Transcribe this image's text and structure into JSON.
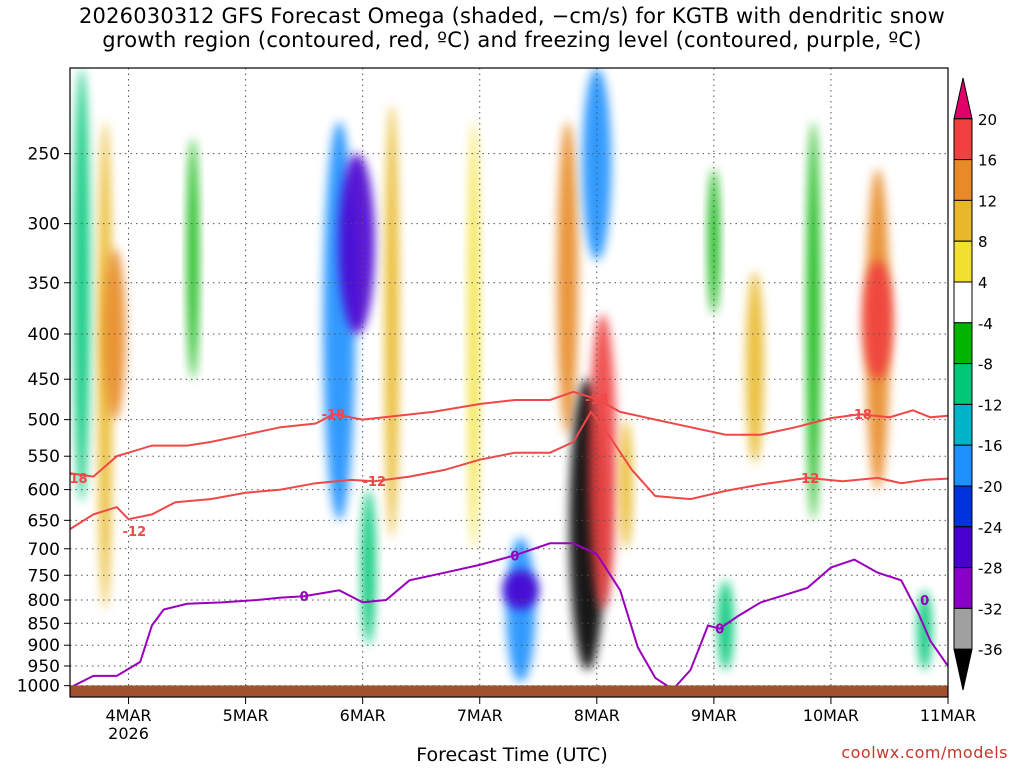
{
  "chart_data": {
    "type": "heatmap",
    "title_line1": "2026030312 GFS Forecast Omega (shaded, −cm/s) for KGTB with dendritic snow",
    "title_line2": "growth region (contoured, red, ºC) and freezing level (contoured, purple, ºC)",
    "xlabel": "Forecast Time (UTC)",
    "ylabel": "",
    "credit": "coolwx.com/models",
    "x_ticks": [
      {
        "day": 0.5,
        "label": "4MAR",
        "sublabel": "2026"
      },
      {
        "day": 1.5,
        "label": "5MAR",
        "sublabel": ""
      },
      {
        "day": 2.5,
        "label": "6MAR",
        "sublabel": ""
      },
      {
        "day": 3.5,
        "label": "7MAR",
        "sublabel": ""
      },
      {
        "day": 4.5,
        "label": "8MAR",
        "sublabel": ""
      },
      {
        "day": 5.5,
        "label": "9MAR",
        "sublabel": ""
      },
      {
        "day": 6.5,
        "label": "10MAR",
        "sublabel": ""
      },
      {
        "day": 7.5,
        "label": "11MAR",
        "sublabel": ""
      }
    ],
    "xlim": [
      0,
      7.5
    ],
    "y_ticks": [
      250,
      300,
      350,
      400,
      450,
      500,
      550,
      600,
      650,
      700,
      750,
      800,
      850,
      900,
      950,
      1000
    ],
    "ylim_hpa": [
      200,
      1030
    ],
    "colorbar": {
      "levels": [
        -36,
        -32,
        -28,
        -24,
        -20,
        -16,
        -12,
        -8,
        -4,
        4,
        8,
        12,
        16,
        20
      ],
      "colors": [
        "#000000",
        "#a0a0a0",
        "#8a00c8",
        "#4800d0",
        "#0033e0",
        "#1e90ff",
        "#00b4c8",
        "#00c878",
        "#00b400",
        "#ffffff",
        "#f2e030",
        "#e8b828",
        "#e88a28",
        "#f04040",
        "#e0006a"
      ]
    },
    "omega_features": [
      {
        "name": "4mar-upward",
        "day": 0.3,
        "p_top": 230,
        "p_bot": 820,
        "value": 9
      },
      {
        "name": "4mar-core",
        "day": 0.38,
        "p_top": 320,
        "p_bot": 500,
        "value": 14
      },
      {
        "name": "4mar-west-sink",
        "day": 0.1,
        "p_top": 200,
        "p_bot": 620,
        "value": -10
      },
      {
        "name": "5mar-sink",
        "day": 1.05,
        "p_top": 240,
        "p_bot": 450,
        "value": -7
      },
      {
        "name": "6mar-sink",
        "day": 2.3,
        "p_top": 230,
        "p_bot": 650,
        "value": -20
      },
      {
        "name": "6mar-core",
        "day": 2.45,
        "p_top": 250,
        "p_bot": 400,
        "value": -26
      },
      {
        "name": "6mar-lower-sink",
        "day": 2.55,
        "p_top": 600,
        "p_bot": 900,
        "value": -9
      },
      {
        "name": "6mar-upward",
        "day": 2.75,
        "p_top": 220,
        "p_bot": 680,
        "value": 9
      },
      {
        "name": "7mar-upward",
        "day": 3.45,
        "p_top": 230,
        "p_bot": 700,
        "value": 7
      },
      {
        "name": "7mar-lower-sink",
        "day": 3.85,
        "p_top": 680,
        "p_bot": 990,
        "value": -18
      },
      {
        "name": "7mar-low-core",
        "day": 3.85,
        "p_top": 740,
        "p_bot": 820,
        "value": -28
      },
      {
        "name": "8mar-upper-upward",
        "day": 4.25,
        "p_top": 230,
        "p_bot": 520,
        "value": 13
      },
      {
        "name": "8mar-upper-sink",
        "day": 4.5,
        "p_top": 200,
        "p_bot": 330,
        "value": -18
      },
      {
        "name": "8mar-spike",
        "day": 4.42,
        "p_top": 450,
        "p_bot": 960,
        "value": -40
      },
      {
        "name": "8mar-upward-column",
        "day": 4.55,
        "p_top": 380,
        "p_bot": 820,
        "value": 17
      },
      {
        "name": "8mar-upward-east",
        "day": 4.75,
        "p_top": 500,
        "p_bot": 700,
        "value": 8
      },
      {
        "name": "9mar-lower-sink",
        "day": 5.6,
        "p_top": 760,
        "p_bot": 960,
        "value": -10
      },
      {
        "name": "9mar-upper-sink",
        "day": 5.5,
        "p_top": 260,
        "p_bot": 380,
        "value": -7
      },
      {
        "name": "9mar-upward",
        "day": 5.85,
        "p_top": 340,
        "p_bot": 560,
        "value": 11
      },
      {
        "name": "10mar-sink",
        "day": 6.35,
        "p_top": 230,
        "p_bot": 650,
        "value": -8
      },
      {
        "name": "10mar-upward",
        "day": 6.9,
        "p_top": 260,
        "p_bot": 600,
        "value": 15
      },
      {
        "name": "10mar-core",
        "day": 6.9,
        "p_top": 330,
        "p_bot": 450,
        "value": 19
      },
      {
        "name": "11mar-lower-sink",
        "day": 7.3,
        "p_top": 780,
        "p_bot": 960,
        "value": -9
      }
    ],
    "contours": [
      {
        "name": "dgz-minus18",
        "label": "-18",
        "color": "#f04848",
        "label_points": [
          {
            "day": 0.05,
            "p": 582
          },
          {
            "day": 2.25,
            "p": 493
          },
          {
            "day": 4.5,
            "p": 474
          },
          {
            "day": 6.75,
            "p": 493
          }
        ],
        "points": [
          [
            0.0,
            575
          ],
          [
            0.2,
            580
          ],
          [
            0.4,
            550
          ],
          [
            0.7,
            535
          ],
          [
            1.0,
            535
          ],
          [
            1.2,
            530
          ],
          [
            1.5,
            520
          ],
          [
            1.8,
            510
          ],
          [
            2.1,
            505
          ],
          [
            2.25,
            493
          ],
          [
            2.5,
            500
          ],
          [
            2.8,
            495
          ],
          [
            3.1,
            490
          ],
          [
            3.5,
            480
          ],
          [
            3.8,
            475
          ],
          [
            4.1,
            475
          ],
          [
            4.3,
            465
          ],
          [
            4.5,
            474
          ],
          [
            4.7,
            490
          ],
          [
            5.0,
            500
          ],
          [
            5.3,
            510
          ],
          [
            5.6,
            520
          ],
          [
            5.9,
            520
          ],
          [
            6.2,
            510
          ],
          [
            6.5,
            498
          ],
          [
            6.75,
            493
          ],
          [
            7.0,
            497
          ],
          [
            7.2,
            488
          ],
          [
            7.35,
            497
          ],
          [
            7.5,
            495
          ]
        ]
      },
      {
        "name": "dgz-minus12",
        "label": "-12",
        "color": "#f04848",
        "label_points": [
          {
            "day": 0.55,
            "p": 668
          },
          {
            "day": 2.6,
            "p": 587
          },
          {
            "day": 6.3,
            "p": 582
          }
        ],
        "points": [
          [
            0.0,
            665
          ],
          [
            0.2,
            640
          ],
          [
            0.4,
            628
          ],
          [
            0.5,
            648
          ],
          [
            0.7,
            640
          ],
          [
            0.9,
            620
          ],
          [
            1.2,
            615
          ],
          [
            1.5,
            605
          ],
          [
            1.8,
            600
          ],
          [
            2.1,
            590
          ],
          [
            2.4,
            585
          ],
          [
            2.6,
            587
          ],
          [
            2.9,
            580
          ],
          [
            3.2,
            570
          ],
          [
            3.5,
            555
          ],
          [
            3.8,
            545
          ],
          [
            4.1,
            545
          ],
          [
            4.3,
            530
          ],
          [
            4.45,
            490
          ],
          [
            4.6,
            520
          ],
          [
            4.8,
            570
          ],
          [
            5.0,
            610
          ],
          [
            5.3,
            615
          ],
          [
            5.6,
            602
          ],
          [
            5.9,
            592
          ],
          [
            6.1,
            587
          ],
          [
            6.3,
            582
          ],
          [
            6.6,
            587
          ],
          [
            6.9,
            582
          ],
          [
            7.1,
            590
          ],
          [
            7.3,
            585
          ],
          [
            7.5,
            583
          ]
        ]
      },
      {
        "name": "freezing-level",
        "label": "0",
        "color": "#9900bb",
        "label_points": [
          {
            "day": 2.0,
            "p": 792
          },
          {
            "day": 3.8,
            "p": 712
          },
          {
            "day": 5.55,
            "p": 862
          },
          {
            "day": 7.3,
            "p": 800
          }
        ],
        "points": [
          [
            0.0,
            1005
          ],
          [
            0.2,
            975
          ],
          [
            0.4,
            975
          ],
          [
            0.6,
            940
          ],
          [
            0.7,
            855
          ],
          [
            0.8,
            820
          ],
          [
            1.0,
            808
          ],
          [
            1.3,
            805
          ],
          [
            1.6,
            800
          ],
          [
            1.8,
            795
          ],
          [
            2.0,
            792
          ],
          [
            2.3,
            780
          ],
          [
            2.5,
            805
          ],
          [
            2.7,
            800
          ],
          [
            2.9,
            760
          ],
          [
            3.2,
            745
          ],
          [
            3.5,
            730
          ],
          [
            3.8,
            712
          ],
          [
            4.1,
            690
          ],
          [
            4.3,
            690
          ],
          [
            4.5,
            710
          ],
          [
            4.7,
            780
          ],
          [
            4.85,
            905
          ],
          [
            5.0,
            980
          ],
          [
            5.15,
            1010
          ],
          [
            5.3,
            960
          ],
          [
            5.45,
            855
          ],
          [
            5.55,
            862
          ],
          [
            5.7,
            835
          ],
          [
            5.9,
            805
          ],
          [
            6.1,
            790
          ],
          [
            6.3,
            775
          ],
          [
            6.5,
            735
          ],
          [
            6.7,
            720
          ],
          [
            6.9,
            745
          ],
          [
            7.1,
            760
          ],
          [
            7.25,
            830
          ],
          [
            7.35,
            890
          ],
          [
            7.5,
            950
          ]
        ]
      }
    ],
    "terrain": {
      "color": "#a0522d",
      "surface_hpa": 1010
    }
  }
}
